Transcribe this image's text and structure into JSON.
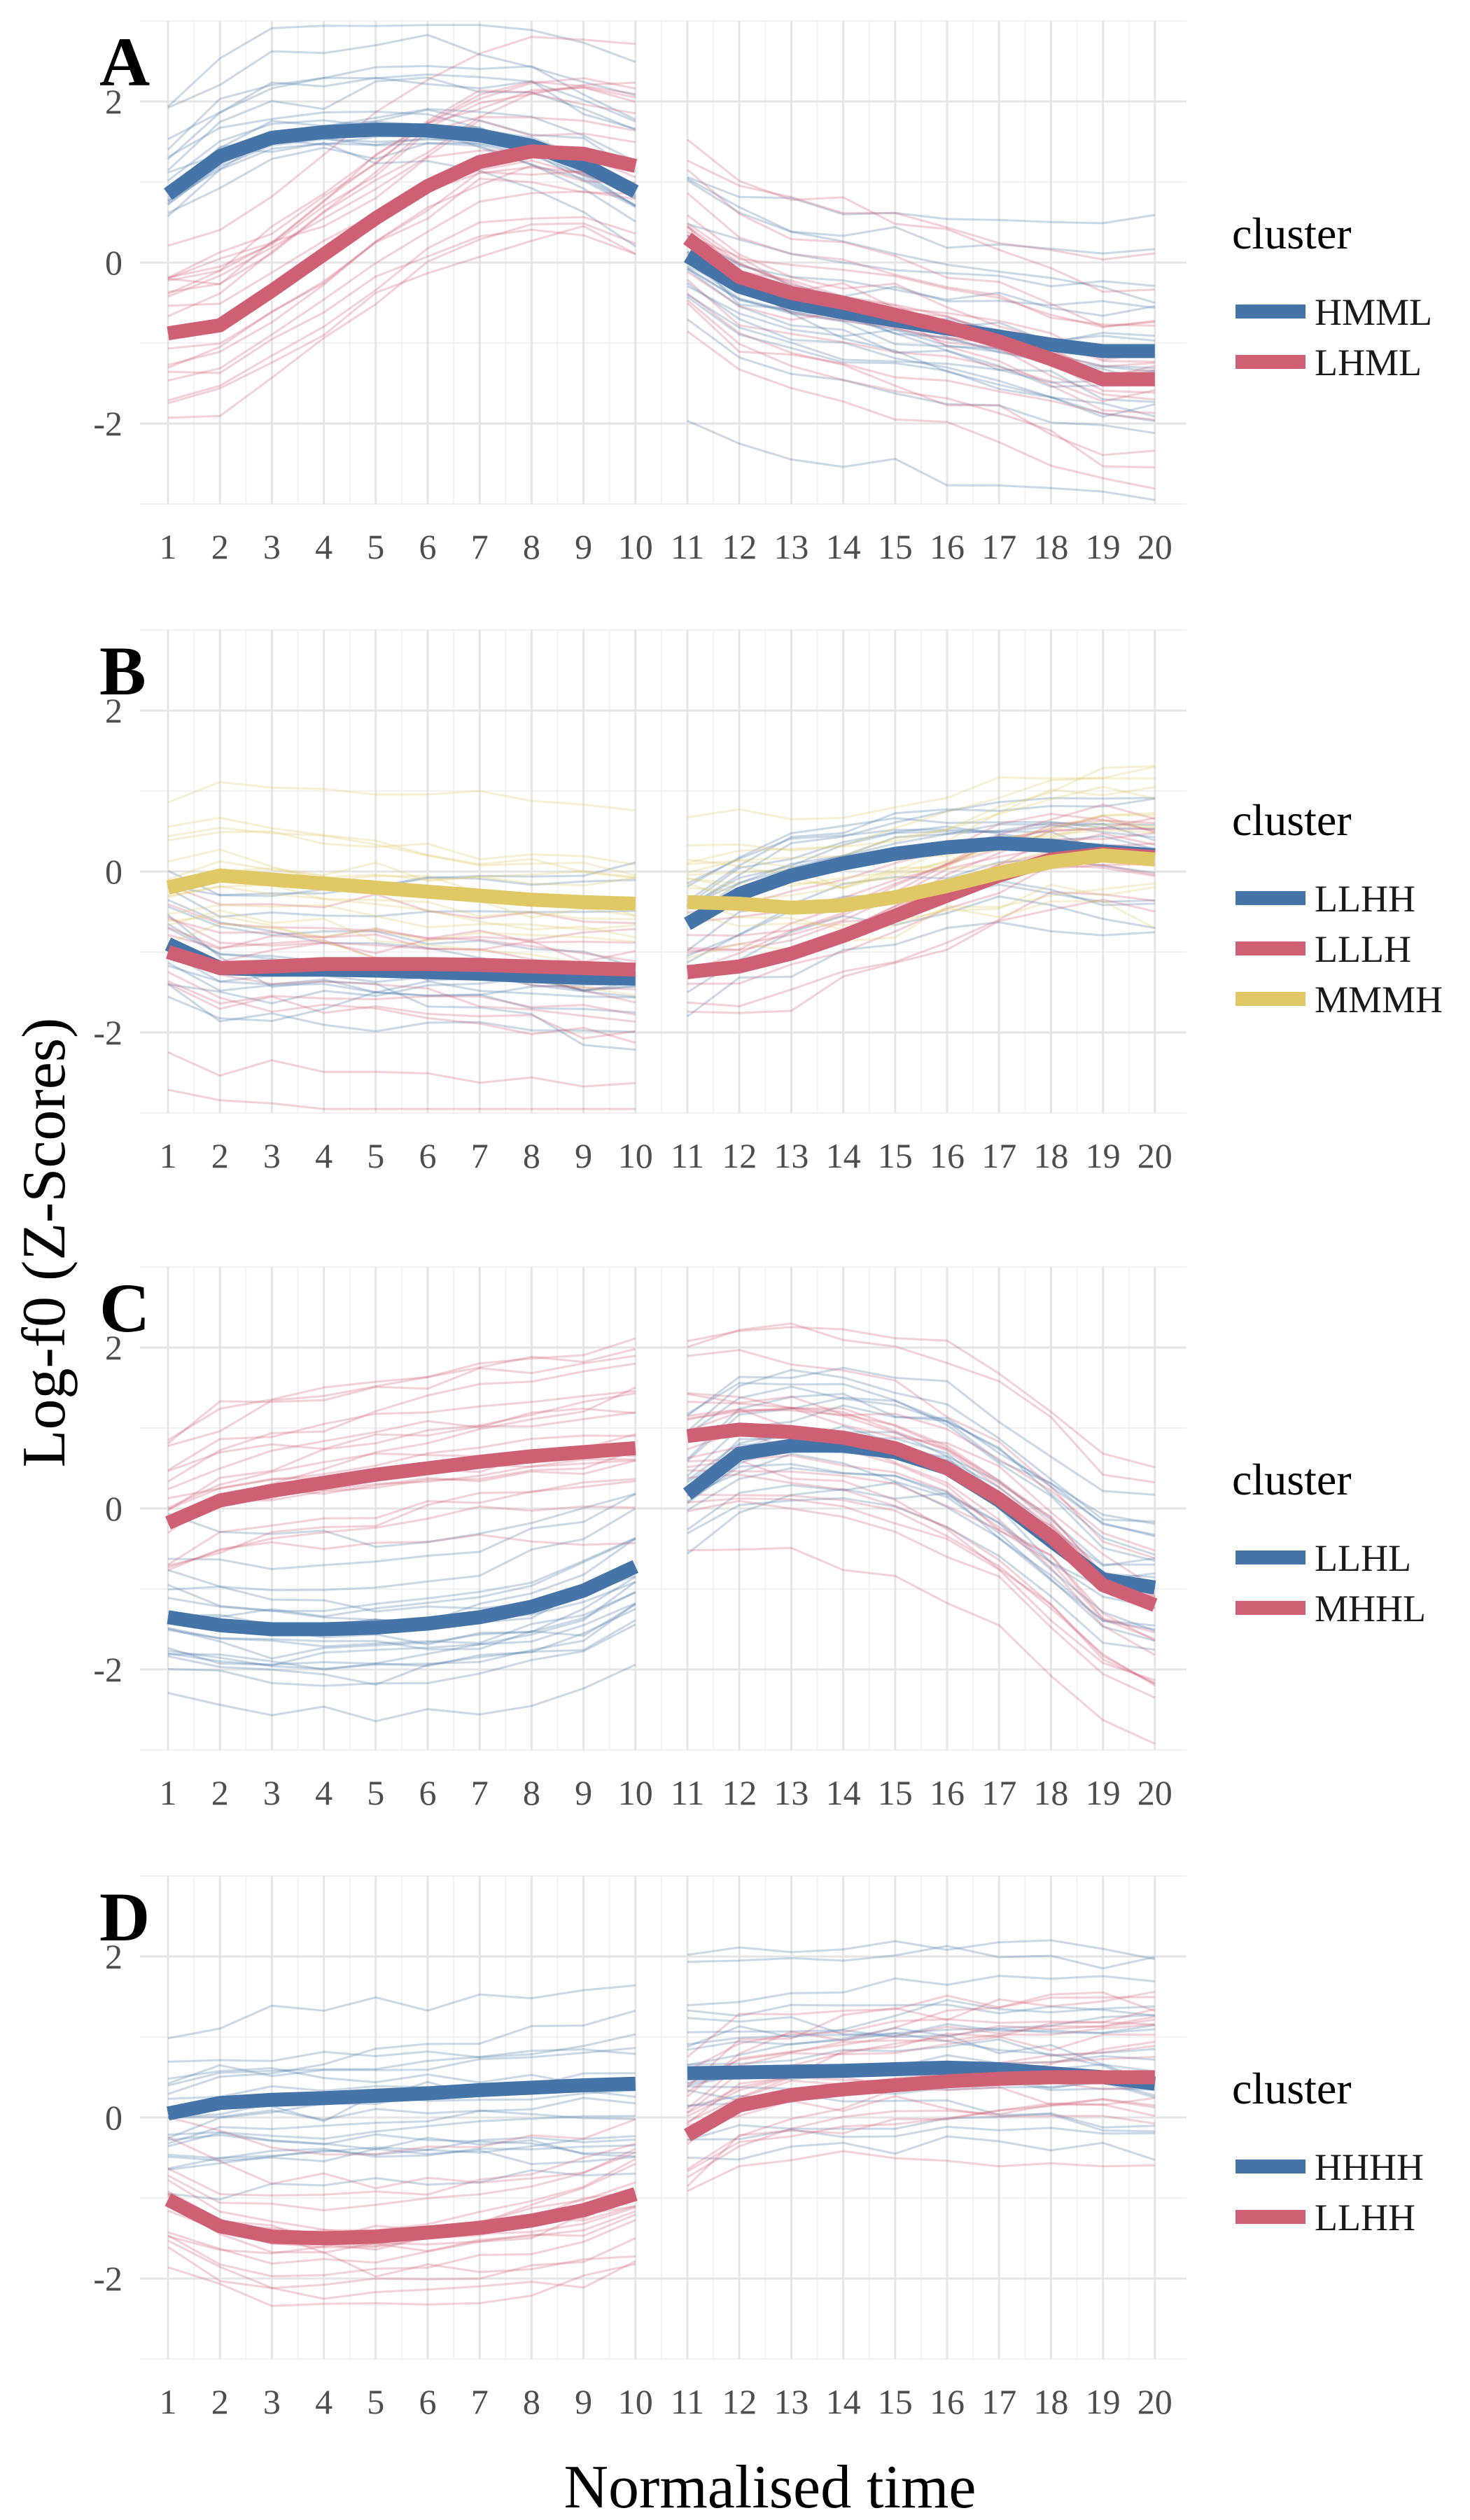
{
  "x_axis_title": "Normalised time",
  "y_axis_title": "Log-f0 (Z-Scores)",
  "chart_data": [
    {
      "type": "line",
      "panel": "A",
      "x": [
        1,
        2,
        3,
        4,
        5,
        6,
        7,
        8,
        9,
        10,
        11,
        12,
        13,
        14,
        15,
        16,
        17,
        18,
        19,
        20
      ],
      "x_ticks": [
        "1",
        "2",
        "3",
        "4",
        "5",
        "6",
        "7",
        "8",
        "9",
        "10",
        "11",
        "12",
        "13",
        "14",
        "15",
        "16",
        "17",
        "18",
        "19",
        "20"
      ],
      "y_ticks": [
        "-2",
        "0",
        "2"
      ],
      "ylim": [
        -3.0,
        3.0
      ],
      "grid": true,
      "legend": {
        "title": "cluster",
        "position": "right"
      },
      "series": [
        {
          "name": "HMML",
          "color": "#4575a8",
          "values": [
            0.85,
            1.32,
            1.55,
            1.62,
            1.65,
            1.64,
            1.58,
            1.45,
            1.22,
            0.88,
            0.08,
            -0.3,
            -0.5,
            -0.62,
            -0.72,
            -0.82,
            -0.92,
            -1.02,
            -1.1,
            -1.1
          ]
        },
        {
          "name": "LHML",
          "color": "#cf5f73",
          "values": [
            -0.88,
            -0.78,
            -0.35,
            0.1,
            0.55,
            0.95,
            1.25,
            1.38,
            1.35,
            1.2,
            0.3,
            -0.18,
            -0.38,
            -0.5,
            -0.65,
            -0.8,
            -0.98,
            -1.2,
            -1.45,
            -1.45
          ]
        }
      ]
    },
    {
      "type": "line",
      "panel": "B",
      "x": [
        1,
        2,
        3,
        4,
        5,
        6,
        7,
        8,
        9,
        10,
        11,
        12,
        13,
        14,
        15,
        16,
        17,
        18,
        19,
        20
      ],
      "x_ticks": [
        "1",
        "2",
        "3",
        "4",
        "5",
        "6",
        "7",
        "8",
        "9",
        "10",
        "11",
        "12",
        "13",
        "14",
        "15",
        "16",
        "17",
        "18",
        "19",
        "20"
      ],
      "y_ticks": [
        "-2",
        "0",
        "2"
      ],
      "ylim": [
        -3.0,
        3.0
      ],
      "grid": true,
      "legend": {
        "title": "cluster",
        "position": "right"
      },
      "series": [
        {
          "name": "LLHH",
          "color": "#4575a8",
          "values": [
            -0.9,
            -1.2,
            -1.22,
            -1.22,
            -1.23,
            -1.25,
            -1.27,
            -1.3,
            -1.32,
            -1.33,
            -0.65,
            -0.28,
            -0.05,
            0.1,
            0.22,
            0.3,
            0.35,
            0.32,
            0.25,
            0.2
          ]
        },
        {
          "name": "LLLH",
          "color": "#cf5f73",
          "values": [
            -1.0,
            -1.2,
            -1.18,
            -1.15,
            -1.15,
            -1.15,
            -1.16,
            -1.18,
            -1.2,
            -1.22,
            -1.25,
            -1.18,
            -1.02,
            -0.8,
            -0.55,
            -0.3,
            -0.05,
            0.15,
            0.22,
            0.18
          ]
        },
        {
          "name": "MMMH",
          "color": "#e0c865",
          "values": [
            -0.2,
            -0.05,
            -0.1,
            -0.15,
            -0.2,
            -0.25,
            -0.3,
            -0.35,
            -0.38,
            -0.4,
            -0.38,
            -0.4,
            -0.45,
            -0.42,
            -0.32,
            -0.18,
            -0.02,
            0.12,
            0.2,
            0.15
          ]
        }
      ]
    },
    {
      "type": "line",
      "panel": "C",
      "x": [
        1,
        2,
        3,
        4,
        5,
        6,
        7,
        8,
        9,
        10,
        11,
        12,
        13,
        14,
        15,
        16,
        17,
        18,
        19,
        20
      ],
      "x_ticks": [
        "1",
        "2",
        "3",
        "4",
        "5",
        "6",
        "7",
        "8",
        "9",
        "10",
        "11",
        "12",
        "13",
        "14",
        "15",
        "16",
        "17",
        "18",
        "19",
        "20"
      ],
      "y_ticks": [
        "-2",
        "0",
        "2"
      ],
      "ylim": [
        -3.0,
        3.0
      ],
      "grid": true,
      "legend": {
        "title": "cluster",
        "position": "right"
      },
      "series": [
        {
          "name": "LLHL",
          "color": "#4575a8",
          "values": [
            -1.35,
            -1.45,
            -1.5,
            -1.5,
            -1.48,
            -1.43,
            -1.35,
            -1.22,
            -1.02,
            -0.72,
            0.18,
            0.68,
            0.78,
            0.78,
            0.7,
            0.5,
            0.1,
            -0.4,
            -0.88,
            -0.98
          ]
        },
        {
          "name": "MHHL",
          "color": "#cf5f73",
          "values": [
            -0.18,
            0.1,
            0.22,
            0.32,
            0.42,
            0.5,
            0.58,
            0.65,
            0.7,
            0.75,
            0.9,
            0.98,
            0.95,
            0.88,
            0.75,
            0.5,
            0.12,
            -0.35,
            -0.95,
            -1.2
          ]
        }
      ]
    },
    {
      "type": "line",
      "panel": "D",
      "x": [
        1,
        2,
        3,
        4,
        5,
        6,
        7,
        8,
        9,
        10,
        11,
        12,
        13,
        14,
        15,
        16,
        17,
        18,
        19,
        20
      ],
      "x_ticks": [
        "1",
        "2",
        "3",
        "4",
        "5",
        "6",
        "7",
        "8",
        "9",
        "10",
        "11",
        "12",
        "13",
        "14",
        "15",
        "16",
        "17",
        "18",
        "19",
        "20"
      ],
      "y_ticks": [
        "-2",
        "0",
        "2"
      ],
      "ylim": [
        -3.0,
        3.0
      ],
      "grid": true,
      "legend": {
        "title": "cluster",
        "position": "right"
      },
      "series": [
        {
          "name": "HHHH",
          "color": "#4575a8",
          "values": [
            0.05,
            0.18,
            0.22,
            0.24,
            0.27,
            0.3,
            0.34,
            0.37,
            0.4,
            0.42,
            0.55,
            0.56,
            0.57,
            0.58,
            0.6,
            0.62,
            0.6,
            0.55,
            0.5,
            0.42
          ]
        },
        {
          "name": "LLHH",
          "color": "#cf5f73",
          "values": [
            -1.02,
            -1.35,
            -1.48,
            -1.5,
            -1.48,
            -1.43,
            -1.37,
            -1.28,
            -1.15,
            -0.95,
            -0.22,
            0.15,
            0.28,
            0.35,
            0.4,
            0.45,
            0.48,
            0.5,
            0.5,
            0.5
          ]
        }
      ]
    }
  ]
}
